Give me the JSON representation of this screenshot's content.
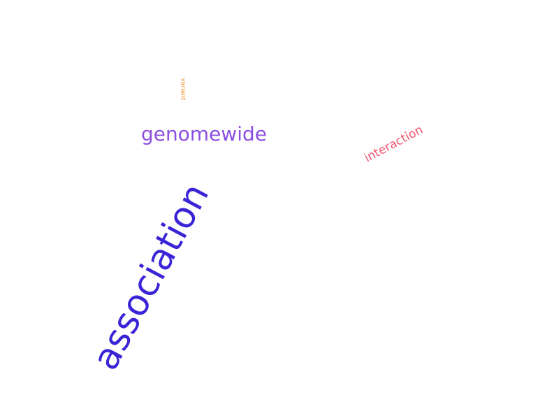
{
  "words": {
    "association": {
      "text": "association",
      "color": "#3a24d6"
    },
    "genomewide": {
      "text": "genomewide",
      "color": "#8c4fe0"
    },
    "interaction": {
      "text": "interaction",
      "color": "#f2546e"
    },
    "variant": {
      "text": "variant",
      "color": "#f08a1c"
    },
    "small_yellow": {
      "text": "",
      "color": "#e8c21a"
    },
    "tiny_blue_right": {
      "text": "",
      "color": "#3c9bd6"
    },
    "tiny_blue_left": {
      "text": "",
      "color": "#3c9bd6"
    },
    "tiny_dot": {
      "text": "",
      "color": "#9a9a9a"
    }
  }
}
